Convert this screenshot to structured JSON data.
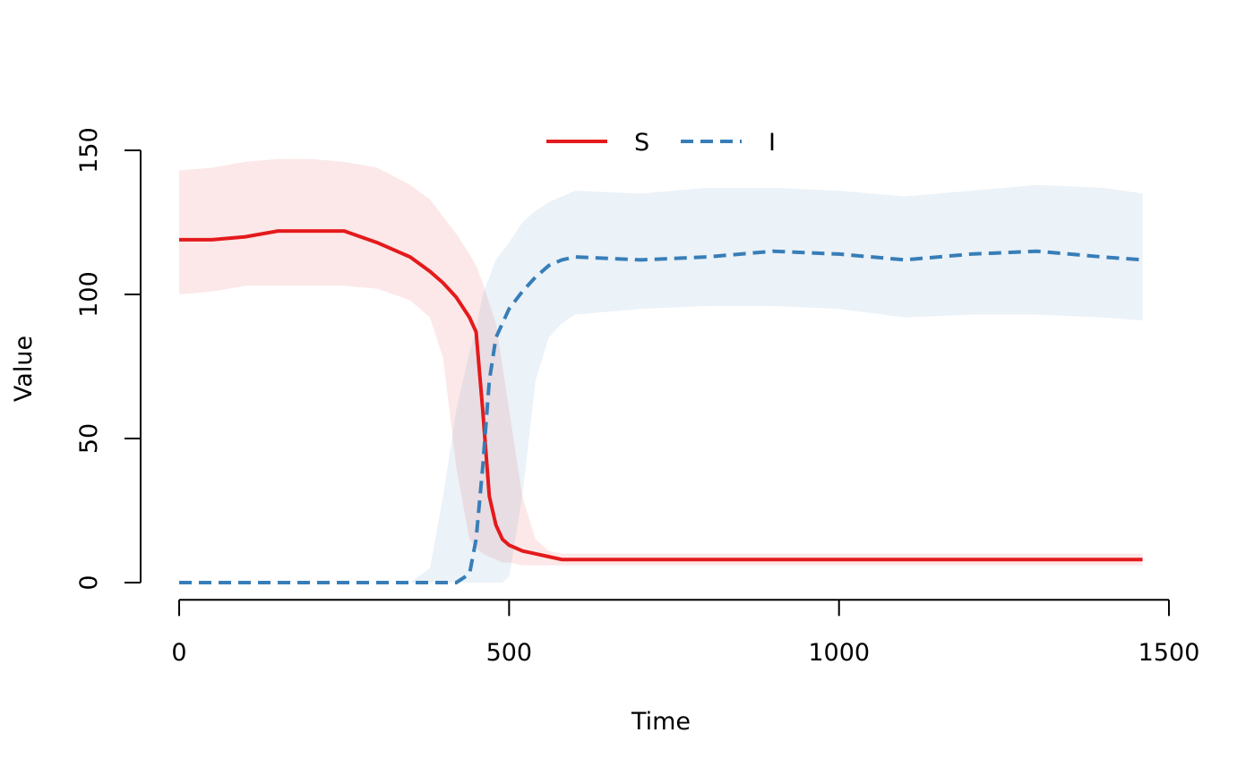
{
  "chart_data": {
    "type": "line",
    "x_label": "Time",
    "y_label": "Value",
    "x": [
      0,
      50,
      100,
      150,
      200,
      250,
      300,
      350,
      380,
      400,
      420,
      440,
      450,
      460,
      470,
      480,
      490,
      500,
      520,
      540,
      560,
      580,
      600,
      700,
      800,
      900,
      1000,
      1100,
      1200,
      1300,
      1400,
      1460
    ],
    "series": [
      {
        "name": "S",
        "color": "#e41a1c",
        "dash": "solid",
        "values": [
          119,
          119,
          120,
          122,
          122,
          122,
          118,
          113,
          108,
          104,
          99,
          92,
          87,
          60,
          30,
          20,
          15,
          13,
          11,
          10,
          9,
          8,
          8,
          8,
          8,
          8,
          8,
          8,
          8,
          8,
          8,
          8
        ],
        "upper": [
          143,
          144,
          146,
          147,
          147,
          146,
          144,
          138,
          133,
          127,
          121,
          114,
          110,
          104,
          97,
          90,
          75,
          60,
          30,
          15,
          11,
          10,
          10,
          10,
          10,
          10,
          10,
          10,
          10,
          10,
          10,
          10
        ],
        "lower": [
          100,
          101,
          103,
          103,
          103,
          103,
          102,
          98,
          92,
          78,
          40,
          15,
          12,
          10,
          9,
          8,
          7,
          7,
          6,
          6,
          6,
          6,
          6,
          6,
          6,
          6,
          6,
          6,
          6,
          6,
          6,
          6
        ]
      },
      {
        "name": "I",
        "color": "#377eb8",
        "dash": "dashed",
        "values": [
          0,
          0,
          0,
          0,
          0,
          0,
          0,
          0,
          0,
          0,
          0,
          3,
          15,
          40,
          70,
          85,
          90,
          95,
          101,
          106,
          110,
          112,
          113,
          112,
          113,
          115,
          114,
          112,
          114,
          115,
          113,
          112
        ],
        "upper": [
          0,
          0,
          0,
          0,
          0,
          0,
          0,
          0,
          5,
          30,
          60,
          80,
          88,
          100,
          106,
          112,
          115,
          118,
          125,
          129,
          132,
          134,
          136,
          135,
          137,
          137,
          136,
          134,
          136,
          138,
          137,
          135
        ],
        "lower": [
          0,
          0,
          0,
          0,
          0,
          0,
          0,
          0,
          0,
          0,
          0,
          0,
          0,
          0,
          0,
          0,
          0,
          2,
          30,
          70,
          85,
          90,
          93,
          95,
          96,
          96,
          95,
          92,
          93,
          93,
          92,
          91
        ]
      }
    ],
    "xlim": [
      -58.4,
      1518.4
    ],
    "xticks": [
      0,
      500,
      1000,
      1500
    ],
    "ylim": [
      -6,
      156
    ],
    "yticks": [
      0,
      50,
      100,
      150
    ],
    "legend": "top"
  }
}
